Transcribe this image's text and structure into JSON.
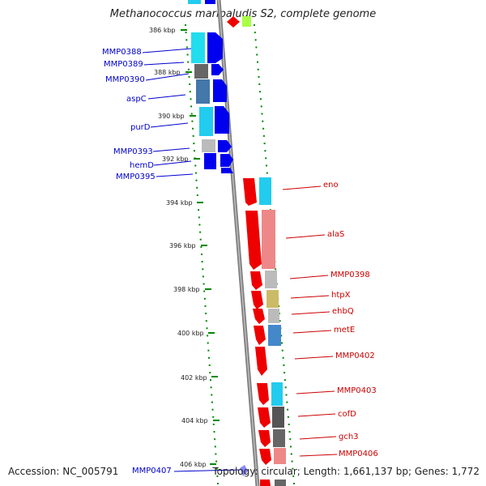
{
  "title": "Methanococcus maripaludis S2, complete genome",
  "footer": {
    "accession": "Accession: NC_005791",
    "topology": "Topology: circular; Length: 1,661,137 bp; Genes: 1,772"
  },
  "ticks": [
    "386 kbp",
    "388 kbp",
    "390 kbp",
    "392 kbp",
    "394 kbp",
    "396 kbp",
    "398 kbp",
    "400 kbp",
    "402 kbp",
    "404 kbp",
    "406 kbp"
  ],
  "left_genes": [
    "MMP0388",
    "MMP0389",
    "MMP0390",
    "aspC",
    "purD",
    "MMP0393",
    "hemD",
    "MMP0395",
    "MMP0407"
  ],
  "right_genes": [
    "eno",
    "alaS",
    "MMP0398",
    "htpX",
    "ehbQ",
    "metE",
    "MMP0402",
    "MMP0403",
    "cofD",
    "gch3",
    "MMP0406"
  ],
  "colors": {
    "forward_strand": "#0000ee",
    "reverse_strand": "#ee0000",
    "backbone": "#888888",
    "tick_dots": "#008800"
  }
}
